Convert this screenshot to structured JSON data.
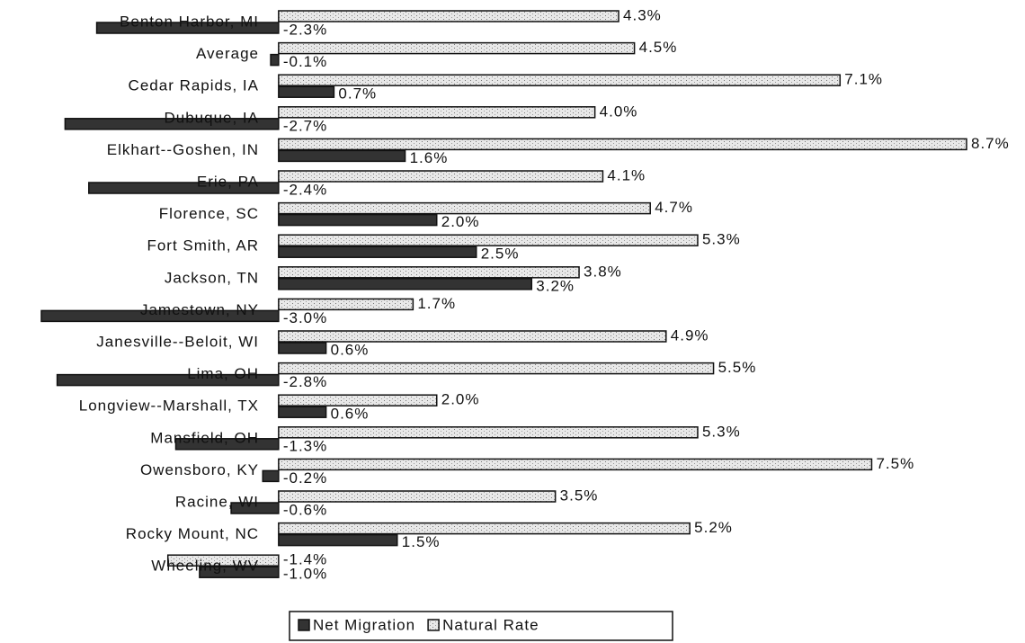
{
  "chart_data": {
    "type": "bar",
    "orientation": "horizontal",
    "categories": [
      "Benton Harbor, MI",
      "Average",
      "Cedar Rapids, IA",
      "Dubuque, IA",
      "Elkhart--Goshen, IN",
      "Erie, PA",
      "Florence, SC",
      "Fort Smith, AR",
      "Jackson, TN",
      "Jamestown, NY",
      "Janesville--Beloit, WI",
      "Lima, OH",
      "Longview--Marshall, TX",
      "Mansfield, OH",
      "Owensboro, KY",
      "Racine, WI",
      "Rocky Mount, NC",
      "Wheeling, WV"
    ],
    "series": [
      {
        "name": "Net Migration",
        "color": "#333333",
        "values": [
          -2.3,
          -0.1,
          0.7,
          -2.7,
          1.6,
          -2.4,
          2.0,
          2.5,
          3.2,
          -3.0,
          0.6,
          -2.8,
          0.6,
          -1.3,
          -0.2,
          -0.6,
          1.5,
          -1.0
        ],
        "value_labels": [
          "-2.3%",
          "-0.1%",
          "0.7%",
          "-2.7%",
          "1.6%",
          "-2.4%",
          "2.0%",
          "2.5%",
          "3.2%",
          "-3.0%",
          "0.6%",
          "-2.8%",
          "0.6%",
          "-1.3%",
          "-0.2%",
          "-0.6%",
          "1.5%",
          "-1.0%"
        ]
      },
      {
        "name": "Natural Rate",
        "color": "#dddddd",
        "values": [
          4.3,
          4.5,
          7.1,
          4.0,
          8.7,
          4.1,
          4.7,
          5.3,
          3.8,
          1.7,
          4.9,
          5.5,
          2.0,
          5.3,
          7.5,
          3.5,
          5.2,
          -1.4
        ],
        "value_labels": [
          "4.3%",
          "4.5%",
          "7.1%",
          "4.0%",
          "8.7%",
          "4.1%",
          "4.7%",
          "5.3%",
          "3.8%",
          "1.7%",
          "4.9%",
          "5.5%",
          "2.0%",
          "5.3%",
          "7.5%",
          "3.5%",
          "5.2%",
          "-1.4%"
        ]
      }
    ],
    "legend": "bottom"
  }
}
